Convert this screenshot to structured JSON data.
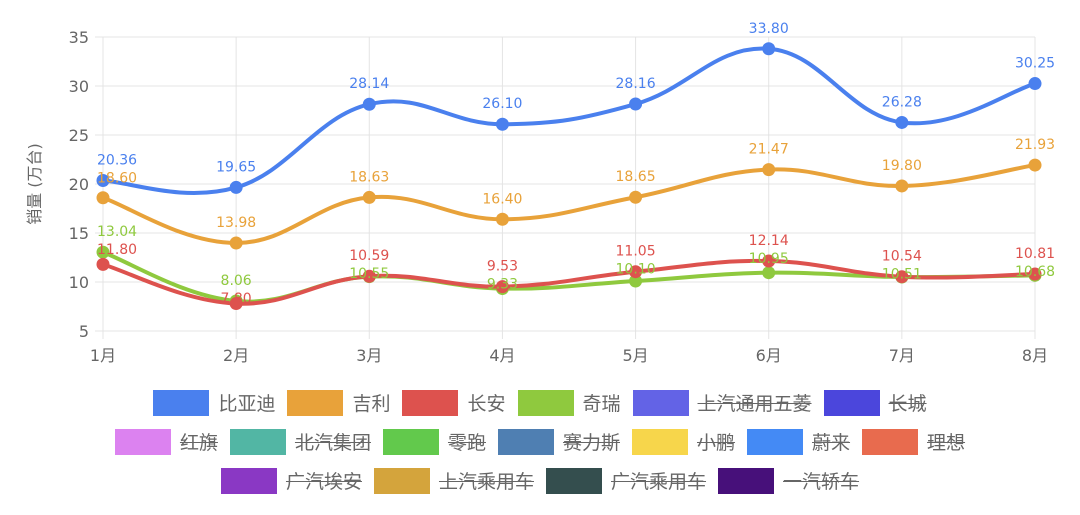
{
  "chart_data": {
    "type": "line",
    "ylabel": "销量 (万台)",
    "ylim": [
      5,
      35
    ],
    "yticks": [
      "5",
      "10",
      "15",
      "20",
      "25",
      "30",
      "35"
    ],
    "categories": [
      "1月",
      "2月",
      "3月",
      "4月",
      "5月",
      "6月",
      "7月",
      "8月"
    ],
    "grid": true,
    "legend_position": "bottom",
    "series": [
      {
        "name": "比亚迪",
        "color": "#4a80ee",
        "hidden": false,
        "values": [
          20.36,
          19.65,
          28.14,
          26.1,
          28.16,
          33.8,
          26.28,
          30.25
        ],
        "labels": [
          "20.36",
          "19.65",
          "28.14",
          "26.10",
          "28.16",
          "33.80",
          "26.28",
          "30.25"
        ]
      },
      {
        "name": "吉利",
        "color": "#e8a23a",
        "hidden": false,
        "values": [
          18.6,
          13.98,
          18.63,
          16.4,
          18.65,
          21.47,
          19.8,
          21.93
        ],
        "labels": [
          "18.60",
          "13.98",
          "18.63",
          "16.40",
          "18.65",
          "21.47",
          "19.80",
          "21.93"
        ]
      },
      {
        "name": "奇瑞",
        "color": "#8fc93e",
        "hidden": false,
        "values": [
          13.04,
          8.06,
          10.55,
          9.33,
          10.1,
          10.95,
          10.51,
          10.68
        ],
        "labels": [
          "13.04",
          "8.06",
          "10.55",
          "9.33",
          "10.10",
          "10.95",
          "10.51",
          "10.68"
        ]
      },
      {
        "name": "长安",
        "color": "#dd524e",
        "hidden": false,
        "values": [
          11.8,
          7.8,
          10.59,
          9.53,
          11.05,
          12.14,
          10.54,
          10.81
        ],
        "labels": [
          "11.80",
          "7.80",
          "10.59",
          "9.53",
          "11.05",
          "12.14",
          "10.54",
          "10.81"
        ]
      }
    ]
  },
  "legend": [
    [
      {
        "name": "比亚迪",
        "color": "#4a80ee",
        "hidden": false
      },
      {
        "name": "吉利",
        "color": "#e8a23a",
        "hidden": false
      },
      {
        "name": "长安",
        "color": "#dd524e",
        "hidden": false
      },
      {
        "name": "奇瑞",
        "color": "#8fc93e",
        "hidden": false
      },
      {
        "name": "上汽通用五菱",
        "color": "#6363e6",
        "hidden": true
      },
      {
        "name": "长城",
        "color": "#4b46dc",
        "hidden": true
      }
    ],
    [
      {
        "name": "红旗",
        "color": "#dc82f0",
        "hidden": true
      },
      {
        "name": "北汽集团",
        "color": "#52b6a4",
        "hidden": true
      },
      {
        "name": "零跑",
        "color": "#62c94c",
        "hidden": true
      },
      {
        "name": "赛力斯",
        "color": "#4f7fb2",
        "hidden": true
      },
      {
        "name": "小鹏",
        "color": "#f7d64b",
        "hidden": true
      },
      {
        "name": "蔚来",
        "color": "#448af5",
        "hidden": true
      },
      {
        "name": "理想",
        "color": "#e86b4e",
        "hidden": true
      }
    ],
    [
      {
        "name": "广汽埃安",
        "color": "#8a38c4",
        "hidden": true
      },
      {
        "name": "上汽乘用车",
        "color": "#d4a43c",
        "hidden": true
      },
      {
        "name": "广汽乘用车",
        "color": "#344e4e",
        "hidden": true
      },
      {
        "name": "一汽轿车",
        "color": "#47107a",
        "hidden": true
      }
    ]
  ]
}
